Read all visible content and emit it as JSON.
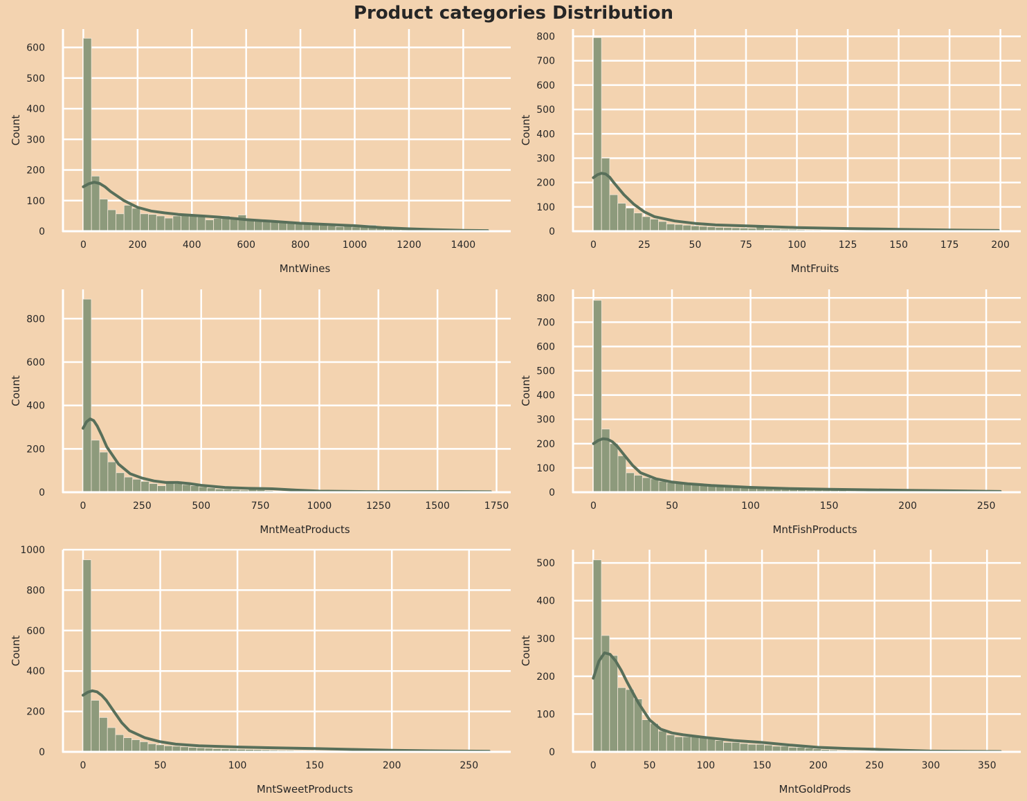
{
  "title": "Product categories Distribution",
  "colors": {
    "background": "#f3d3b0",
    "grid": "#ffffff",
    "bar_fill": "#8d9a7c",
    "bar_edge": "#f3e6d6",
    "kde_line": "#586f5a",
    "text": "#262626"
  },
  "chart_data": [
    {
      "type": "bar",
      "subtype": "histogram-with-kde",
      "xlabel": "MntWines",
      "ylabel": "Count",
      "xlim": [
        -75,
        1575
      ],
      "ylim": [
        0,
        660
      ],
      "xticks": [
        0,
        200,
        400,
        600,
        800,
        1000,
        1200,
        1400
      ],
      "yticks": [
        0,
        100,
        200,
        300,
        400,
        500,
        600
      ],
      "bin_start": 0,
      "bin_width": 30,
      "counts": [
        630,
        180,
        105,
        70,
        57,
        85,
        75,
        57,
        55,
        50,
        43,
        50,
        55,
        52,
        50,
        37,
        42,
        50,
        40,
        53,
        40,
        38,
        35,
        33,
        30,
        28,
        27,
        25,
        24,
        20,
        18,
        15,
        18,
        14,
        20,
        20,
        15,
        10,
        8,
        6,
        5,
        4,
        3,
        3,
        2,
        2,
        2,
        1,
        1,
        1
      ],
      "kde_x": [
        0,
        20,
        40,
        60,
        80,
        100,
        150,
        200,
        250,
        300,
        350,
        400,
        450,
        500,
        550,
        600,
        700,
        800,
        900,
        1000,
        1100,
        1200,
        1300,
        1400,
        1490
      ],
      "kde_y": [
        145,
        155,
        160,
        156,
        145,
        130,
        100,
        78,
        66,
        60,
        55,
        52,
        49,
        46,
        42,
        38,
        32,
        26,
        22,
        18,
        12,
        8,
        5,
        3,
        2
      ]
    },
    {
      "type": "bar",
      "subtype": "histogram-with-kde",
      "xlabel": "MntFruits",
      "ylabel": "Count",
      "xlim": [
        -10,
        210
      ],
      "ylim": [
        0,
        830
      ],
      "xticks": [
        0,
        25,
        50,
        75,
        100,
        125,
        150,
        175,
        200
      ],
      "yticks": [
        0,
        100,
        200,
        300,
        400,
        500,
        600,
        700,
        800
      ],
      "bin_start": 0,
      "bin_width": 4,
      "counts": [
        795,
        300,
        150,
        115,
        95,
        75,
        60,
        50,
        40,
        30,
        28,
        25,
        22,
        20,
        18,
        16,
        15,
        14,
        13,
        12,
        25,
        10,
        9,
        8,
        8,
        7,
        6,
        6,
        5,
        5,
        5,
        4,
        4,
        4,
        3,
        3,
        3,
        3,
        3,
        2,
        2,
        2,
        2,
        2,
        2,
        2,
        2,
        1,
        1,
        1
      ],
      "kde_x": [
        0,
        2,
        4,
        6,
        8,
        10,
        15,
        20,
        25,
        30,
        40,
        50,
        60,
        75,
        100,
        125,
        150,
        175,
        199
      ],
      "kde_y": [
        220,
        232,
        238,
        235,
        222,
        200,
        150,
        110,
        80,
        60,
        42,
        32,
        26,
        22,
        15,
        11,
        8,
        5,
        3
      ]
    },
    {
      "type": "bar",
      "subtype": "histogram-with-kde",
      "xlabel": "MntMeatProducts",
      "ylabel": "Count",
      "xlim": [
        -85,
        1810
      ],
      "ylim": [
        0,
        935
      ],
      "xticks": [
        0,
        250,
        500,
        750,
        1000,
        1250,
        1500,
        1750
      ],
      "yticks": [
        0,
        200,
        400,
        600,
        800
      ],
      "bin_start": 0,
      "bin_width": 35,
      "counts": [
        890,
        240,
        185,
        140,
        90,
        70,
        60,
        50,
        40,
        30,
        45,
        40,
        35,
        30,
        25,
        20,
        15,
        15,
        12,
        10,
        15,
        12,
        8,
        6,
        4,
        3,
        3,
        2,
        2,
        2,
        2,
        1,
        1,
        1,
        1,
        1,
        1,
        1,
        1,
        1,
        1,
        1,
        1,
        1,
        1,
        1,
        1,
        1,
        1
      ],
      "kde_x": [
        0,
        15,
        30,
        45,
        60,
        80,
        100,
        150,
        200,
        250,
        300,
        350,
        400,
        450,
        500,
        600,
        700,
        800,
        900,
        1000,
        1200,
        1400,
        1600,
        1725
      ],
      "kde_y": [
        295,
        325,
        338,
        330,
        305,
        260,
        210,
        130,
        85,
        65,
        52,
        45,
        45,
        40,
        32,
        22,
        18,
        16,
        10,
        5,
        3,
        3,
        3,
        2
      ]
    },
    {
      "type": "bar",
      "subtype": "histogram-with-kde",
      "xlabel": "MntFishProducts",
      "ylabel": "Count",
      "xlim": [
        -13,
        272
      ],
      "ylim": [
        0,
        835
      ],
      "xticks": [
        0,
        50,
        100,
        150,
        200,
        250
      ],
      "yticks": [
        0,
        100,
        200,
        300,
        400,
        500,
        600,
        700,
        800
      ],
      "bin_start": 0,
      "bin_width": 5.2,
      "counts": [
        790,
        260,
        200,
        150,
        80,
        70,
        60,
        55,
        45,
        40,
        38,
        35,
        32,
        30,
        28,
        25,
        22,
        20,
        18,
        16,
        15,
        14,
        13,
        12,
        11,
        10,
        9,
        9,
        8,
        8,
        7,
        6,
        6,
        5,
        5,
        5,
        4,
        4,
        4,
        3,
        3,
        3,
        3,
        2,
        2,
        2,
        2,
        2,
        1,
        1
      ],
      "kde_x": [
        0,
        3,
        6,
        9,
        12,
        15,
        20,
        25,
        30,
        40,
        50,
        60,
        75,
        100,
        125,
        150,
        175,
        200,
        225,
        259
      ],
      "kde_y": [
        200,
        213,
        220,
        218,
        208,
        190,
        150,
        110,
        80,
        55,
        42,
        35,
        28,
        20,
        15,
        12,
        10,
        8,
        6,
        3
      ]
    },
    {
      "type": "bar",
      "subtype": "histogram-with-kde",
      "xlabel": "MntSweetProducts",
      "ylabel": "Count",
      "xlim": [
        -13,
        277
      ],
      "ylim": [
        0,
        1000
      ],
      "xticks": [
        0,
        50,
        100,
        150,
        200,
        250
      ],
      "yticks": [
        0,
        200,
        400,
        600,
        800,
        1000
      ],
      "bin_start": 0,
      "bin_width": 5.26,
      "counts": [
        950,
        255,
        170,
        120,
        85,
        70,
        60,
        50,
        40,
        35,
        30,
        28,
        25,
        22,
        20,
        18,
        16,
        15,
        14,
        13,
        12,
        11,
        10,
        9,
        8,
        8,
        7,
        7,
        6,
        6,
        5,
        5,
        5,
        4,
        4,
        4,
        3,
        3,
        3,
        3,
        2,
        2,
        2,
        2,
        2,
        2,
        1,
        1,
        1,
        1
      ],
      "kde_x": [
        0,
        3,
        6,
        9,
        12,
        15,
        20,
        25,
        30,
        40,
        50,
        60,
        75,
        100,
        125,
        150,
        175,
        200,
        225,
        263
      ],
      "kde_y": [
        280,
        295,
        302,
        297,
        280,
        255,
        200,
        145,
        105,
        70,
        50,
        38,
        30,
        24,
        20,
        16,
        12,
        8,
        5,
        3
      ]
    },
    {
      "type": "bar",
      "subtype": "histogram-with-kde",
      "xlabel": "MntGoldProds",
      "ylabel": "Count",
      "xlim": [
        -18,
        380
      ],
      "ylim": [
        0,
        535
      ],
      "xticks": [
        0,
        50,
        100,
        150,
        200,
        250,
        300,
        350
      ],
      "yticks": [
        0,
        100,
        200,
        300,
        400,
        500
      ],
      "bin_start": 0,
      "bin_width": 7.24,
      "counts": [
        508,
        308,
        255,
        170,
        165,
        140,
        85,
        75,
        55,
        45,
        40,
        40,
        40,
        38,
        35,
        30,
        25,
        25,
        22,
        20,
        20,
        18,
        15,
        15,
        12,
        12,
        10,
        8,
        6,
        5,
        4,
        4,
        3,
        3,
        2,
        2,
        2,
        1,
        1,
        1,
        1,
        1,
        1,
        1,
        1,
        1,
        1,
        1,
        1,
        1
      ],
      "kde_x": [
        0,
        5,
        10,
        15,
        20,
        25,
        30,
        40,
        50,
        60,
        70,
        80,
        100,
        125,
        150,
        175,
        200,
        225,
        250,
        275,
        300,
        362
      ],
      "kde_y": [
        195,
        240,
        262,
        258,
        240,
        215,
        185,
        130,
        85,
        60,
        50,
        45,
        38,
        30,
        25,
        18,
        12,
        9,
        7,
        4,
        2,
        1
      ]
    }
  ]
}
